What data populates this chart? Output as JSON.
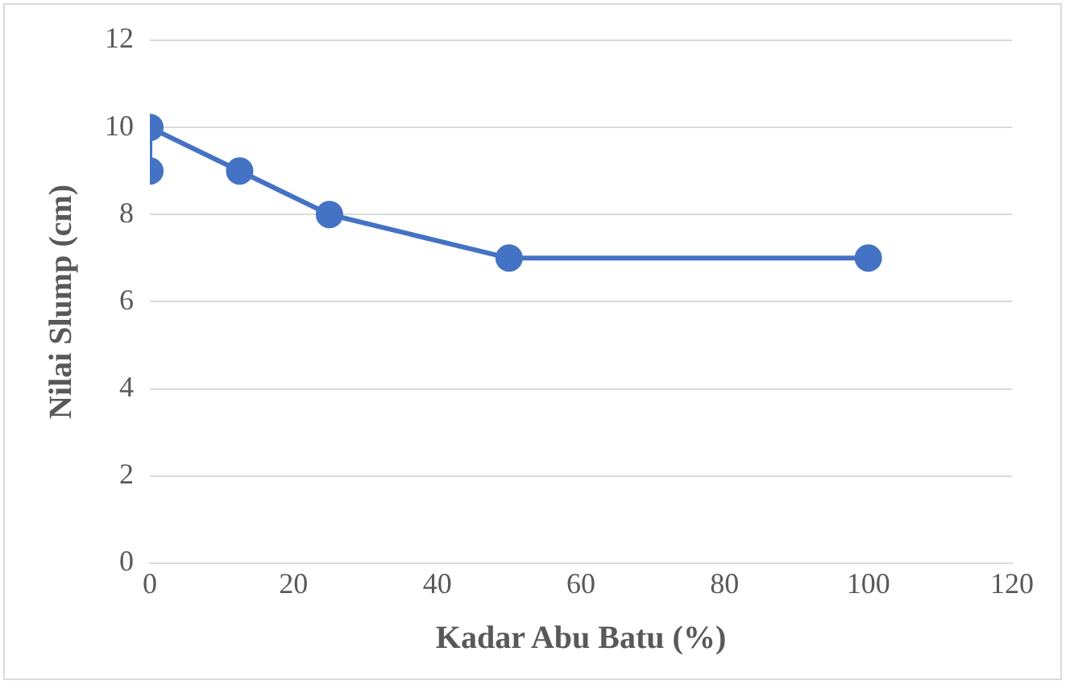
{
  "chart_data": {
    "type": "line",
    "xlabel": "Kadar Abu Batu (%)",
    "ylabel": "Nilai Slump (cm)",
    "x": [
      0,
      0,
      12.5,
      25,
      50,
      100
    ],
    "series": [
      {
        "color": "#4472c4",
        "values": [
          9,
          10,
          9,
          8,
          7,
          7
        ]
      }
    ],
    "xlim": [
      0,
      120
    ],
    "xticks": [
      0,
      20,
      40,
      60,
      80,
      100,
      120
    ],
    "ylim": [
      0,
      12
    ],
    "yticks": [
      0,
      2,
      4,
      6,
      8,
      10,
      12
    ],
    "grid": "y",
    "marker": "circle",
    "legend": false
  }
}
